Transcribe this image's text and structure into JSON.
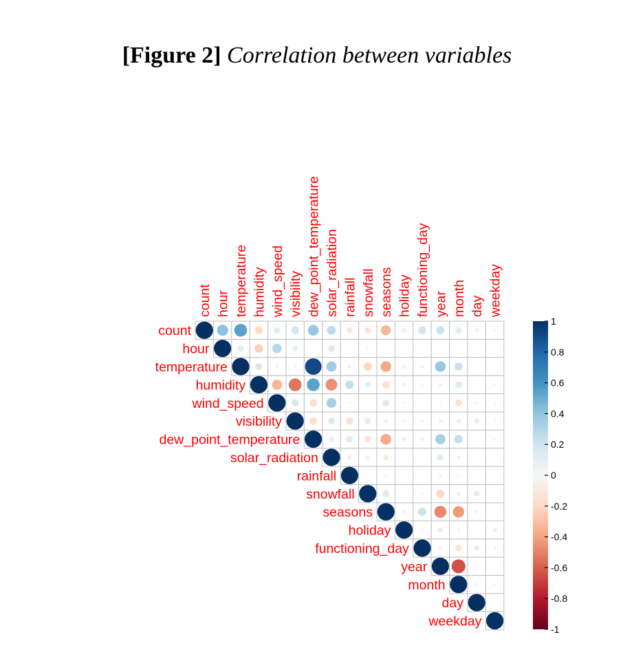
{
  "figure": {
    "label": "[Figure 2]",
    "caption": "Correlation between variables"
  },
  "colors": {
    "strong_positive": "#053061",
    "mid_positive": "#4393C3",
    "light_positive": "#D1E5F0",
    "neutral": "#F7F7F7",
    "light_negative": "#FDDBC7",
    "mid_negative": "#D6604D",
    "strong_negative": "#67001F",
    "label_color": "#FF0000",
    "grid": "#BEBEBE"
  },
  "chart_data": {
    "type": "heatmap",
    "style": "correlation-circles-upper-triangle",
    "variables": [
      "count",
      "hour",
      "temperature",
      "humidity",
      "wind_speed",
      "visibility",
      "dew_point_temperature",
      "solar_radiation",
      "rainfall",
      "snowfall",
      "seasons",
      "holiday",
      "functioning_day",
      "year",
      "month",
      "day",
      "weekday"
    ],
    "matrix": [
      [
        1,
        0.41,
        0.54,
        -0.2,
        0.12,
        0.2,
        0.38,
        0.26,
        -0.12,
        -0.14,
        -0.33,
        -0.07,
        0.2,
        0.22,
        0.13,
        0.05,
        0.03
      ],
      [
        null,
        1,
        0.12,
        -0.24,
        0.29,
        0.1,
        0.0,
        0.15,
        0.01,
        -0.02,
        0.0,
        0.0,
        0.01,
        0.0,
        0.0,
        0.0,
        0.0
      ],
      [
        null,
        null,
        1,
        0.16,
        -0.04,
        0.03,
        0.91,
        0.35,
        0.05,
        -0.22,
        -0.38,
        -0.06,
        -0.05,
        0.38,
        0.22,
        0.01,
        0.0
      ],
      [
        null,
        null,
        null,
        1,
        -0.34,
        -0.54,
        0.54,
        -0.46,
        0.24,
        0.11,
        -0.17,
        -0.05,
        -0.02,
        0.04,
        0.14,
        -0.01,
        -0.02
      ],
      [
        null,
        null,
        null,
        null,
        1,
        0.17,
        -0.18,
        0.33,
        -0.02,
        0.0,
        0.14,
        0.02,
        -0.01,
        -0.02,
        -0.16,
        0.03,
        -0.02
      ],
      [
        null,
        null,
        null,
        null,
        null,
        1,
        -0.18,
        0.15,
        -0.17,
        -0.12,
        -0.06,
        0.03,
        -0.03,
        0.05,
        0.08,
        -0.1,
        0.02
      ],
      [
        null,
        null,
        null,
        null,
        null,
        null,
        1,
        0.09,
        0.13,
        -0.15,
        -0.38,
        -0.07,
        -0.05,
        0.34,
        0.24,
        0.0,
        -0.02
      ],
      [
        null,
        null,
        null,
        null,
        null,
        null,
        null,
        1,
        -0.07,
        -0.07,
        -0.1,
        -0.01,
        -0.01,
        0.13,
        0.05,
        0.01,
        0.0
      ],
      [
        null,
        null,
        null,
        null,
        null,
        null,
        null,
        null,
        1,
        0.01,
        0.02,
        -0.01,
        0.0,
        0.03,
        0.02,
        0.0,
        -0.01
      ],
      [
        null,
        null,
        null,
        null,
        null,
        null,
        null,
        null,
        null,
        1,
        0.15,
        -0.01,
        0.03,
        -0.21,
        0.05,
        0.11,
        0.01
      ],
      [
        null,
        null,
        null,
        null,
        null,
        null,
        null,
        null,
        null,
        null,
        1,
        -0.05,
        0.22,
        -0.48,
        -0.43,
        0.03,
        0.0
      ],
      [
        null,
        null,
        null,
        null,
        null,
        null,
        null,
        null,
        null,
        null,
        null,
        1,
        -0.03,
        0.09,
        -0.03,
        0.0,
        0.07
      ],
      [
        null,
        null,
        null,
        null,
        null,
        null,
        null,
        null,
        null,
        null,
        null,
        null,
        1,
        -0.05,
        -0.14,
        0.1,
        0.03
      ],
      [
        null,
        null,
        null,
        null,
        null,
        null,
        null,
        null,
        null,
        null,
        null,
        null,
        null,
        1,
        -0.64,
        0.0,
        0.01
      ],
      [
        null,
        null,
        null,
        null,
        null,
        null,
        null,
        null,
        null,
        null,
        null,
        null,
        null,
        null,
        1,
        0.04,
        0.02
      ],
      [
        null,
        null,
        null,
        null,
        null,
        null,
        null,
        null,
        null,
        null,
        null,
        null,
        null,
        null,
        null,
        1,
        0.0
      ],
      [
        null,
        null,
        null,
        null,
        null,
        null,
        null,
        null,
        null,
        null,
        null,
        null,
        null,
        null,
        null,
        null,
        1
      ]
    ],
    "colorbar": {
      "range": [
        -1,
        1
      ],
      "ticks": [
        1,
        0.8,
        0.6,
        0.4,
        0.2,
        0,
        -0.2,
        -0.4,
        -0.6,
        -0.8,
        -1
      ],
      "tick_labels": [
        "1",
        "0.8",
        "0.6",
        "0.4",
        "0.2",
        "0",
        "-0.2",
        "-0.4",
        "-0.6",
        "-0.8",
        "-1"
      ],
      "placement": "right"
    },
    "grid": true
  }
}
